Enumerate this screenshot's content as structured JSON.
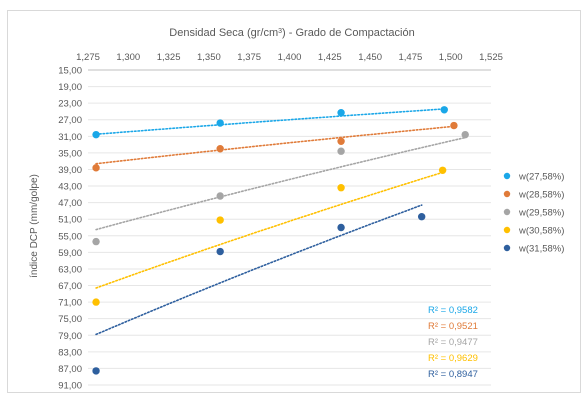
{
  "chart_data": {
    "type": "scatter",
    "title_main": "Densidad Seca (gr/cm",
    "title_sup": "3",
    "title_rest": ") - Grado de Compactación",
    "xlabel": "",
    "ylabel": "índice DCP (mm/golpe)",
    "x_axis_position": "top",
    "y_axis_reversed": true,
    "xlim": [
      1.275,
      1.525
    ],
    "ylim": [
      15,
      91
    ],
    "x_ticks": [
      "1,275",
      "1,300",
      "1,325",
      "1,350",
      "1,375",
      "1,400",
      "1,425",
      "1,450",
      "1,475",
      "1,500",
      "1,525"
    ],
    "y_ticks": [
      "15,00",
      "19,00",
      "23,00",
      "27,00",
      "31,00",
      "35,00",
      "39,00",
      "43,00",
      "47,00",
      "51,00",
      "55,00",
      "59,00",
      "63,00",
      "67,00",
      "71,00",
      "75,00",
      "79,00",
      "83,00",
      "87,00",
      "91,00"
    ],
    "trendline": "logarithmic",
    "legend_position": "right",
    "series": [
      {
        "name": "w(27,58%)",
        "color": "#1aa7e8",
        "x": [
          1.28,
          1.357,
          1.432,
          1.496
        ],
        "y": [
          30.6,
          27.8,
          25.3,
          24.6
        ],
        "fit_x": [
          1.28,
          1.496
        ],
        "fit_y": [
          30.5,
          24.4
        ],
        "r2": "R² = 0,9582"
      },
      {
        "name": "w(28,58%)",
        "color": "#e07b39",
        "x": [
          1.28,
          1.357,
          1.432,
          1.502
        ],
        "y": [
          38.6,
          34.0,
          32.2,
          28.4
        ],
        "fit_x": [
          1.28,
          1.502
        ],
        "fit_y": [
          37.6,
          28.6
        ],
        "r2": "R² = 0,9521"
      },
      {
        "name": "w(29,58%)",
        "color": "#a5a5a5",
        "x": [
          1.28,
          1.357,
          1.432,
          1.509
        ],
        "y": [
          56.4,
          45.4,
          34.6,
          30.6
        ],
        "fit_x": [
          1.28,
          1.509
        ],
        "fit_y": [
          53.5,
          31.3
        ],
        "r2": "R² = 0,9477"
      },
      {
        "name": "w(30,58%)",
        "color": "#ffc000",
        "x": [
          1.28,
          1.357,
          1.432,
          1.495
        ],
        "y": [
          71.0,
          51.2,
          43.4,
          39.2
        ],
        "fit_x": [
          1.28,
          1.495
        ],
        "fit_y": [
          67.6,
          39.7
        ],
        "r2": "R² = 0,9629"
      },
      {
        "name": "w(31,58%)",
        "color": "#2e5f9e",
        "x": [
          1.28,
          1.357,
          1.432,
          1.482
        ],
        "y": [
          87.6,
          58.8,
          53.0,
          50.4
        ],
        "fit_x": [
          1.28,
          1.482
        ],
        "fit_y": [
          78.8,
          47.6
        ],
        "r2": "R² = 0,8947"
      }
    ]
  }
}
